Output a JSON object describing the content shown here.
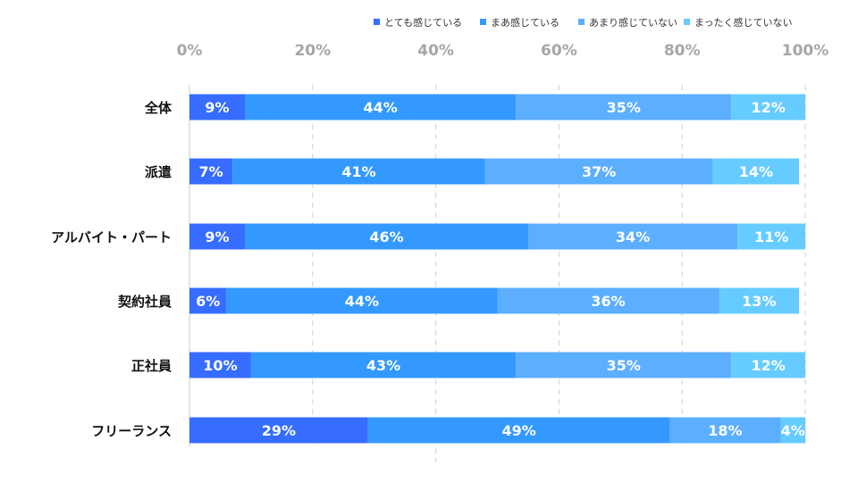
{
  "chart_data": {
    "type": "bar",
    "orientation": "horizontal",
    "stacked": "percent",
    "categories": [
      "全体",
      "派遣",
      "アルバイト・パート",
      "契約社員",
      "正社員",
      "フリーランス"
    ],
    "series": [
      {
        "name": "とても感じている",
        "color": "#366cff",
        "values": [
          9,
          7,
          9,
          6,
          10,
          29
        ]
      },
      {
        "name": "まあ感じている",
        "color": "#3399ff",
        "values": [
          44,
          41,
          46,
          44,
          43,
          49
        ]
      },
      {
        "name": "あまり感じていない",
        "color": "#5caeff",
        "values": [
          35,
          37,
          34,
          36,
          35,
          18
        ]
      },
      {
        "name": "まったく感じていない",
        "color": "#66ccff",
        "values": [
          12,
          14,
          11,
          13,
          12,
          4
        ]
      }
    ],
    "xlim": [
      0,
      100
    ],
    "xticks": [
      "0%",
      "20%",
      "40%",
      "60%",
      "80%",
      "100%"
    ],
    "grid": true,
    "legend": "top-right",
    "data_labels": true
  }
}
